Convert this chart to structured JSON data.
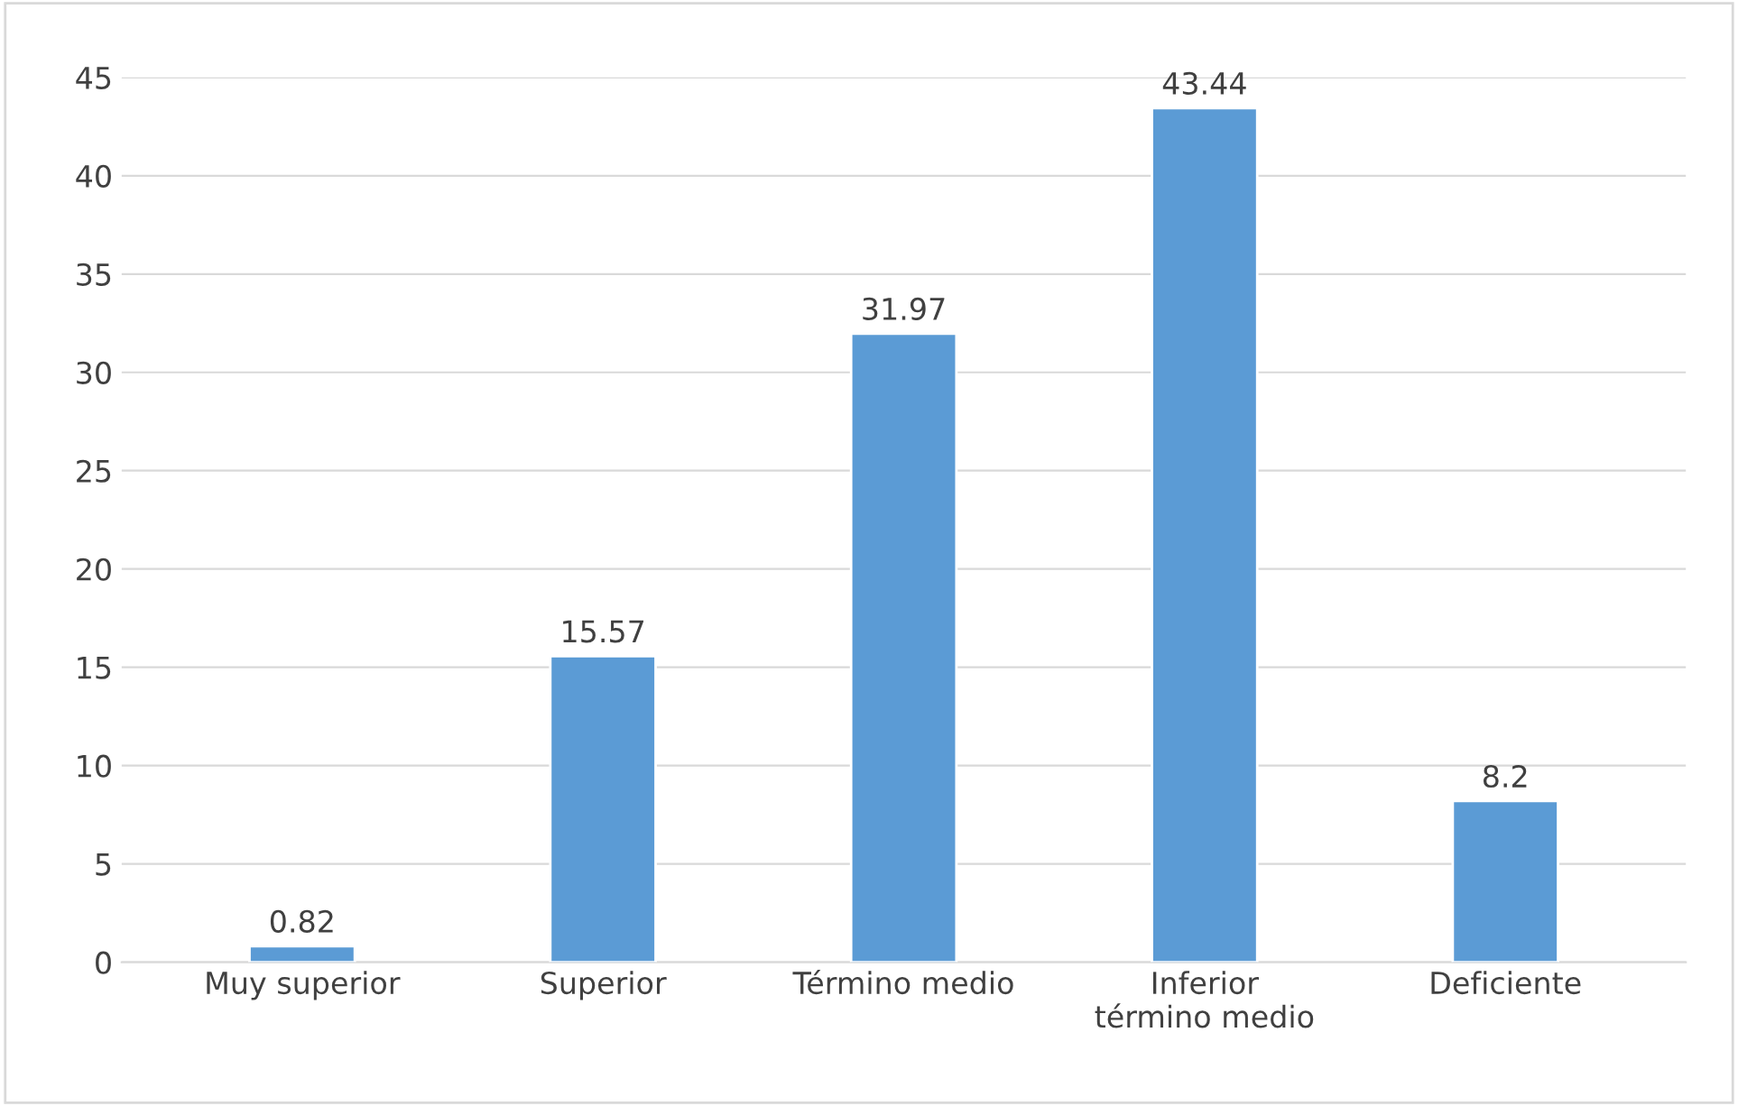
{
  "chart_data": {
    "type": "bar",
    "categories": [
      "Muy superior",
      "Superior",
      "Término medio",
      "Inferior\ntérmino medio",
      "Deficiente"
    ],
    "values": [
      0.82,
      15.57,
      31.97,
      43.44,
      8.2
    ],
    "color": "#5b9bd5",
    "ylim": [
      0,
      45
    ],
    "yticks": [
      0,
      5,
      10,
      15,
      20,
      25,
      30,
      35,
      40,
      45
    ],
    "grid": "y",
    "data_labels": true
  }
}
